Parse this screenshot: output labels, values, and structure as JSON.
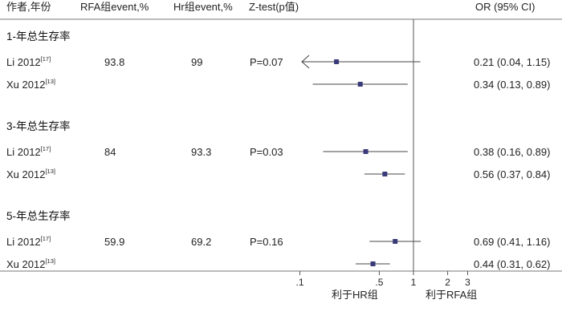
{
  "headers": {
    "author_year": "作者,年份",
    "rfa_event": "RFA组event,%",
    "hr_event": "Hr组event,%",
    "ztest": "Z-test(p值)",
    "or_ci": "OR (95% CI)"
  },
  "chart_data": {
    "type": "forest",
    "x_scale": "log",
    "reference_line": 1,
    "x_ticks": [
      {
        "value": 0.1,
        "label": ".1"
      },
      {
        "value": 0.5,
        "label": ".5"
      },
      {
        "value": 1,
        "label": "1"
      },
      {
        "value": 2,
        "label": "2"
      },
      {
        "value": 3,
        "label": "3"
      }
    ],
    "favours_left": "利于HR组",
    "favours_right": "利于RFA组",
    "groups": [
      {
        "label": "1-年总生存率",
        "studies": [
          {
            "author": "Li 2012",
            "ref": "[17]",
            "rfa": "93.8",
            "hr": "99",
            "p": "P=0.07",
            "or": 0.21,
            "lo": 0.04,
            "hi": 1.15,
            "ci_text": "0.21 (0.04, 1.15)",
            "clipped_low": true
          },
          {
            "author": "Xu 2012",
            "ref": "[13]",
            "rfa": "",
            "hr": "",
            "p": "",
            "or": 0.34,
            "lo": 0.13,
            "hi": 0.89,
            "ci_text": "0.34 (0.13, 0.89)",
            "clipped_low": false
          }
        ]
      },
      {
        "label": "3-年总生存率",
        "studies": [
          {
            "author": "Li 2012",
            "ref": "[17]",
            "rfa": "84",
            "hr": "93.3",
            "p": "P=0.03",
            "or": 0.38,
            "lo": 0.16,
            "hi": 0.89,
            "ci_text": "0.38 (0.16, 0.89)",
            "clipped_low": false
          },
          {
            "author": "Xu 2012",
            "ref": "[13]",
            "rfa": "",
            "hr": "",
            "p": "",
            "or": 0.56,
            "lo": 0.37,
            "hi": 0.84,
            "ci_text": "0.56 (0.37, 0.84)",
            "clipped_low": false
          }
        ]
      },
      {
        "label": "5-年总生存率",
        "studies": [
          {
            "author": "Li 2012",
            "ref": "[17]",
            "rfa": "59.9",
            "hr": "69.2",
            "p": "P=0.16",
            "or": 0.69,
            "lo": 0.41,
            "hi": 1.16,
            "ci_text": "0.69 (0.41, 1.16)",
            "clipped_low": false
          },
          {
            "author": "Xu 2012",
            "ref": "[13]",
            "rfa": "",
            "hr": "",
            "p": "",
            "or": 0.44,
            "lo": 0.31,
            "hi": 0.62,
            "ci_text": "0.44 (0.31, 0.62)",
            "clipped_low": false
          }
        ]
      }
    ],
    "colors": {
      "marker": "#3a3a7a",
      "line": "#444444",
      "axis": "#555555"
    }
  }
}
